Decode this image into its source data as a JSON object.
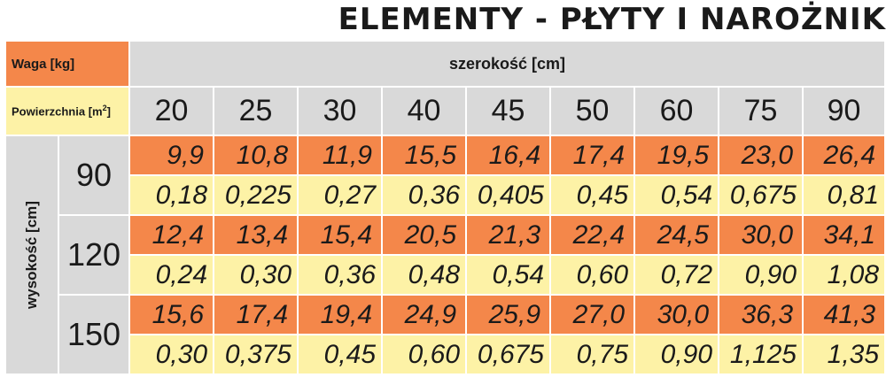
{
  "title": "ELEMENTY - PŁYTY I NAROŻNIK",
  "header": {
    "waga_label": "Waga [kg]",
    "szerokosc_label": "szerokość [cm]",
    "powierzchnia_label": "Powierzchnia [m",
    "powierzchnia_sup": "2",
    "powierzchnia_suffix": "]",
    "wysokosc_label": "wysokość [cm]"
  },
  "widths": [
    "20",
    "25",
    "30",
    "40",
    "45",
    "50",
    "60",
    "75",
    "90"
  ],
  "rows": [
    {
      "height": "90",
      "weights": [
        "9,9",
        "10,8",
        "11,9",
        "15,5",
        "16,4",
        "17,4",
        "19,5",
        "23,0",
        "26,4"
      ],
      "areas": [
        "0,18",
        "0,225",
        "0,27",
        "0,36",
        "0,405",
        "0,45",
        "0,54",
        "0,675",
        "0,81"
      ]
    },
    {
      "height": "120",
      "weights": [
        "12,4",
        "13,4",
        "15,4",
        "20,5",
        "21,3",
        "22,4",
        "24,5",
        "30,0",
        "34,1"
      ],
      "areas": [
        "0,24",
        "0,30",
        "0,36",
        "0,48",
        "0,54",
        "0,60",
        "0,72",
        "0,90",
        "1,08"
      ]
    },
    {
      "height": "150",
      "weights": [
        "15,6",
        "17,4",
        "19,4",
        "24,9",
        "25,9",
        "27,0",
        "30,0",
        "36,3",
        "41,3"
      ],
      "areas": [
        "0,30",
        "0,375",
        "0,45",
        "0,60",
        "0,675",
        "0,75",
        "0,90",
        "1,125",
        "1,35"
      ]
    }
  ]
}
